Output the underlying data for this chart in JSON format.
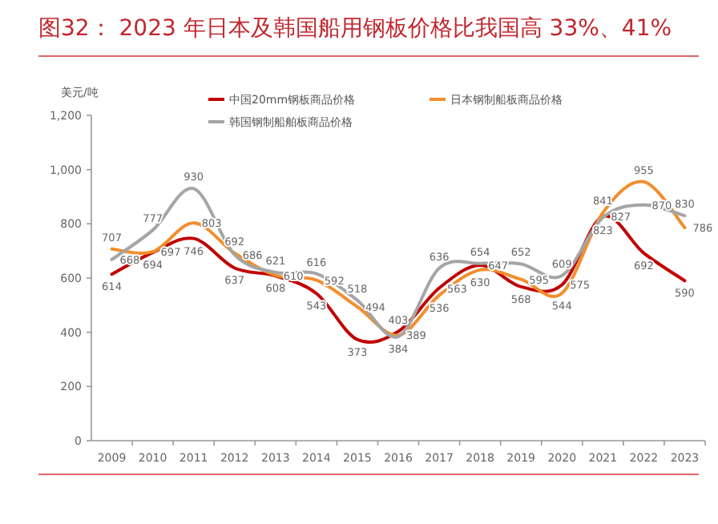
{
  "chart_data": {
    "type": "line",
    "title": "图32： 2023 年日本及韩国船用钢板价格比我国高 33%、41%",
    "ylabel": "美元/吨",
    "categories": [
      "2009",
      "2010",
      "2011",
      "2012",
      "2013",
      "2014",
      "2015",
      "2016",
      "2017",
      "2018",
      "2019",
      "2020",
      "2021",
      "2022",
      "2023"
    ],
    "series": [
      {
        "name": "中国20mm钢板商品价格",
        "color": "#c00000",
        "values": [
          614,
          694,
          746,
          637,
          608,
          543,
          373,
          403,
          563,
          647,
          568,
          575,
          827,
          692,
          590
        ]
      },
      {
        "name": "日本钢制船板商品价格",
        "color": "#f28e2b",
        "values": [
          707,
          697,
          803,
          692,
          610,
          592,
          494,
          389,
          536,
          630,
          595,
          544,
          841,
          955,
          786
        ]
      },
      {
        "name": "韩国钢制船舶板商品价格",
        "color": "#a5a5a5",
        "values": [
          668,
          777,
          930,
          686,
          621,
          616,
          518,
          384,
          636,
          654,
          652,
          609,
          823,
          870,
          830
        ]
      }
    ],
    "ylim": [
      0,
      1200
    ],
    "yticks": [
      0,
      200,
      400,
      600,
      800,
      {
        "value": 1000,
        "label": "1,000"
      },
      {
        "value": 1200,
        "label": "1,200"
      }
    ],
    "data_labels": true,
    "legend": "top",
    "grid": false,
    "marker": "none",
    "line_style": "solid"
  }
}
